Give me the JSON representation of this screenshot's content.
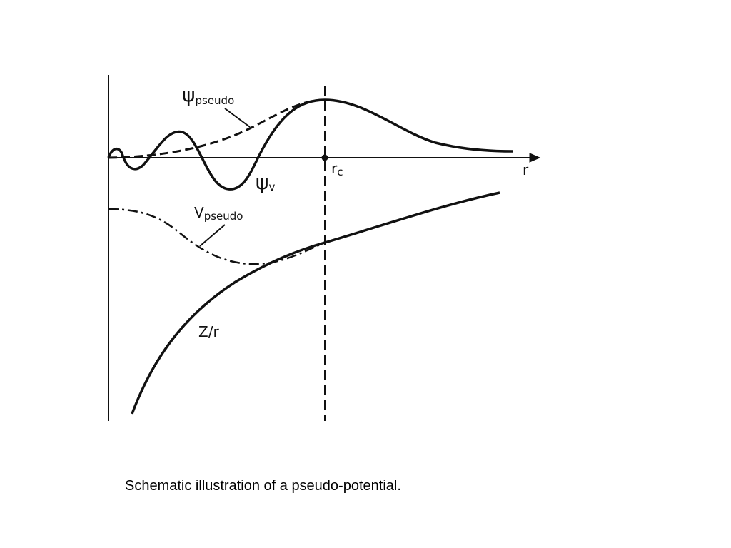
{
  "labels": {
    "psi_pseudo": {
      "symbol": "ψ",
      "subscript": "pseudo"
    },
    "psi_v": {
      "symbol": "ψ",
      "subscript": "v"
    },
    "r_c": {
      "symbol": "r",
      "subscript": "c"
    },
    "r_axis": "r",
    "v_pseudo": {
      "symbol": "V",
      "subscript": "pseudo"
    },
    "z_over_r": "Z/r"
  },
  "caption": "Schematic illustration of a pseudo-potential."
}
